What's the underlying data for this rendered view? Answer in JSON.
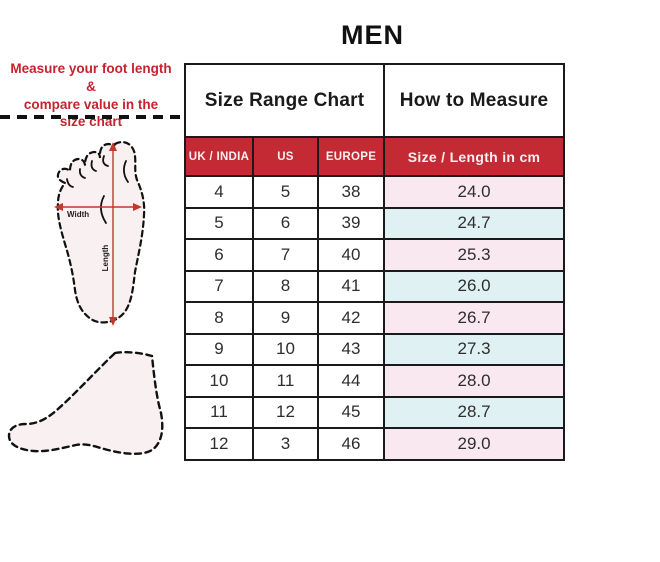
{
  "title": "MEN",
  "annotation": "Measure your foot length &\ncompare value in the\nsize chart",
  "diagram": {
    "width_label": "Width",
    "length_label": "Length"
  },
  "table": {
    "group_headers": [
      {
        "label": "Size Range Chart",
        "colspan": 3
      },
      {
        "label": "How to Measure",
        "colspan": 1
      }
    ]
  },
  "chart_data": {
    "type": "table",
    "title": "MEN",
    "columns": [
      "UK / INDIA",
      "US",
      "EUROPE",
      "Size / Length in cm"
    ],
    "rows": [
      [
        "4",
        "5",
        "38",
        "24.0"
      ],
      [
        "5",
        "6",
        "39",
        "24.7"
      ],
      [
        "6",
        "7",
        "40",
        "25.3"
      ],
      [
        "7",
        "8",
        "41",
        "26.0"
      ],
      [
        "8",
        "9",
        "42",
        "26.7"
      ],
      [
        "9",
        "10",
        "43",
        "27.3"
      ],
      [
        "10",
        "11",
        "44",
        "28.0"
      ],
      [
        "11",
        "12",
        "45",
        "28.7"
      ],
      [
        "12",
        "3",
        "46",
        "29.0"
      ]
    ],
    "layout_hints": {
      "last_column_row_colors_alternate": [
        "pink",
        "blue"
      ],
      "header_row_color": "#C32A33"
    }
  },
  "colors": {
    "accent_red": "#C32A33",
    "annotation_red": "#C5232E",
    "row_pink": "#F9E8F0",
    "row_blue": "#E0F1F3",
    "foot_fill": "#F9F1F1",
    "table_border": "#1A1A1A",
    "header_text": "#FBEFF1",
    "data_text": "#2E2E2E"
  }
}
